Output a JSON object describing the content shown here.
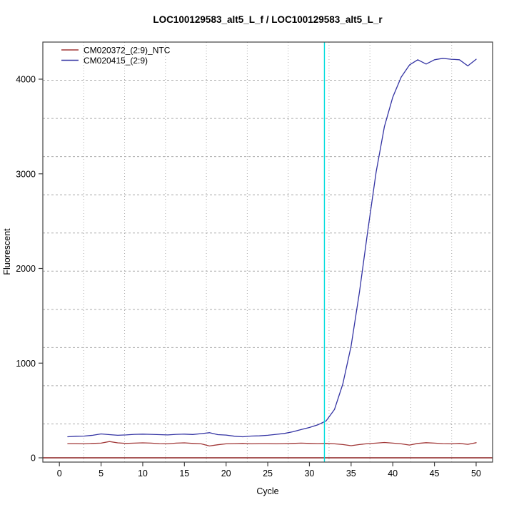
{
  "colors": {
    "axis_box": "#404040",
    "grid": "#ababab",
    "zero_line": "#8b2121",
    "ct_line": "#00dcdc",
    "series_ntc": "#a03636",
    "series_sample": "#3333a3",
    "text": "#000000"
  },
  "chart_data": {
    "type": "line",
    "title": "LOC100129583_alt5_L_f / LOC100129583_alt5_L_r",
    "xlabel": "Cycle",
    "ylabel": "Fluorescent",
    "x_ticks": [
      0,
      5,
      10,
      15,
      20,
      25,
      30,
      35,
      40,
      45,
      50
    ],
    "y_ticks": [
      0,
      1000,
      2000,
      3000,
      4000
    ],
    "xlim": [
      -2,
      52
    ],
    "ylim": [
      -45,
      4400
    ],
    "grid": true,
    "legend_position": "top-left",
    "vline_cycle": 31.8,
    "hline_value": 0,
    "x": [
      1,
      2,
      3,
      4,
      5,
      6,
      7,
      8,
      9,
      10,
      11,
      12,
      13,
      14,
      15,
      16,
      17,
      18,
      19,
      20,
      21,
      22,
      23,
      24,
      25,
      26,
      27,
      28,
      29,
      30,
      31,
      32,
      33,
      34,
      35,
      36,
      37,
      38,
      39,
      40,
      41,
      42,
      43,
      44,
      45,
      46,
      47,
      48,
      49,
      50
    ],
    "series": [
      {
        "name": "CM020372_(2:9)_NTC",
        "color": "#a03636",
        "values": [
          150,
          150,
          148,
          152,
          155,
          172,
          158,
          152,
          155,
          158,
          155,
          150,
          148,
          155,
          158,
          152,
          148,
          125,
          138,
          148,
          150,
          152,
          148,
          150,
          150,
          148,
          150,
          152,
          155,
          152,
          150,
          152,
          148,
          140,
          128,
          140,
          150,
          155,
          162,
          155,
          148,
          135,
          152,
          160,
          155,
          150,
          148,
          152,
          142,
          160
        ]
      },
      {
        "name": "CM020415_(2:9)",
        "color": "#3333a3",
        "values": [
          222,
          228,
          230,
          238,
          252,
          245,
          238,
          242,
          248,
          250,
          248,
          245,
          242,
          248,
          250,
          246,
          255,
          265,
          245,
          240,
          228,
          222,
          230,
          232,
          238,
          248,
          258,
          275,
          298,
          320,
          348,
          390,
          510,
          780,
          1180,
          1750,
          2400,
          3020,
          3500,
          3810,
          4020,
          4150,
          4205,
          4160,
          4205,
          4220,
          4210,
          4205,
          4140,
          4210
        ]
      }
    ]
  }
}
